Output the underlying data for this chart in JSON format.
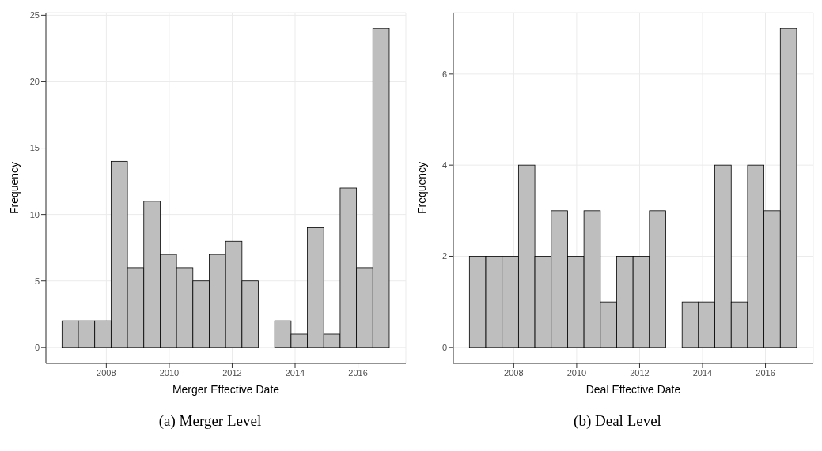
{
  "chart_data": [
    {
      "type": "histogram",
      "title": "(a) Merger Level",
      "xlabel": "Merger Effective Date",
      "ylabel": "Frequency",
      "bins": [
        2006.6,
        2007.12,
        2007.64,
        2008.16,
        2008.68,
        2009.2,
        2009.72,
        2010.24,
        2010.76,
        2011.28,
        2011.8,
        2012.32,
        2012.84,
        2013.36,
        2013.88,
        2014.4,
        2014.92,
        2015.44,
        2015.96,
        2016.48,
        2017.0
      ],
      "values": [
        2,
        2,
        2,
        14,
        6,
        11,
        7,
        6,
        5,
        7,
        8,
        5,
        0,
        2,
        1,
        9,
        1,
        12,
        6,
        24
      ],
      "color": "#bebebe",
      "xlim": [
        2006.08,
        2017.52
      ],
      "xticks": [
        2008,
        2010,
        2012,
        2014,
        2016
      ],
      "ylim": [
        -1.2,
        25.2
      ],
      "yticks": [
        0,
        5,
        10,
        15,
        20,
        25
      ],
      "grid": true
    },
    {
      "type": "histogram",
      "title": "(b) Deal Level",
      "xlabel": "Deal Effective Date",
      "ylabel": "Frequency",
      "bins": [
        2006.6,
        2007.12,
        2007.64,
        2008.16,
        2008.68,
        2009.2,
        2009.72,
        2010.24,
        2010.76,
        2011.28,
        2011.8,
        2012.32,
        2012.84,
        2013.36,
        2013.88,
        2014.4,
        2014.92,
        2015.44,
        2015.96,
        2016.48,
        2017.0
      ],
      "values": [
        2,
        2,
        2,
        4,
        2,
        3,
        2,
        3,
        1,
        2,
        2,
        3,
        0,
        1,
        1,
        4,
        1,
        4,
        3,
        7
      ],
      "color": "#bebebe",
      "xlim": [
        2006.08,
        2017.52
      ],
      "xticks": [
        2008,
        2010,
        2012,
        2014,
        2016
      ],
      "ylim": [
        -0.35,
        7.35
      ],
      "yticks": [
        0,
        2,
        4,
        6
      ],
      "grid": true
    }
  ]
}
